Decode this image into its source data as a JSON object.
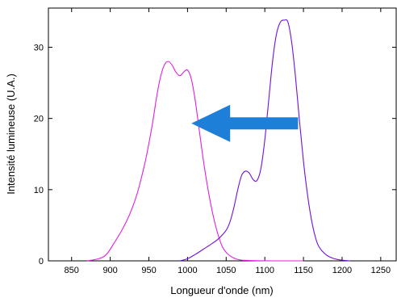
{
  "chart_data": {
    "type": "line",
    "title": "",
    "xlabel": "Longueur d'onde (nm)",
    "ylabel": "Intensité lumineuse (U.A.)",
    "xlim": [
      820,
      1270
    ],
    "ylim": [
      0,
      35.5
    ],
    "x_ticks": [
      850,
      900,
      950,
      1000,
      1050,
      1100,
      1150,
      1200,
      1250
    ],
    "x_tick_labels": [
      "850",
      "900",
      "950",
      "1000",
      "1050",
      "1100",
      "1150",
      "1200",
      "1250"
    ],
    "y_ticks": [
      0,
      10,
      20,
      30
    ],
    "y_tick_labels": [
      "0",
      "10",
      "20",
      "30"
    ],
    "grid": false,
    "legend": "none",
    "series": [
      {
        "color": "#e020e0",
        "x": [
          870,
          885,
          895,
          905,
          915,
          925,
          935,
          945,
          950,
          955,
          960,
          965,
          970,
          975,
          980,
          985,
          990,
          995,
          1000,
          1005,
          1010,
          1015,
          1020,
          1025,
          1030,
          1035,
          1040,
          1045,
          1050,
          1055,
          1060,
          1065,
          1070,
          1080,
          1090,
          1100,
          1110,
          1130,
          1150
        ],
        "y": [
          0,
          0.3,
          0.9,
          2.5,
          4.3,
          6.5,
          9.5,
          13.8,
          16.5,
          19.5,
          23,
          25.8,
          27.5,
          28,
          27.5,
          26.5,
          26,
          26.5,
          26.8,
          25.5,
          22.5,
          18.5,
          14.5,
          11,
          8,
          5.5,
          3.5,
          2,
          1.2,
          0.7,
          0.4,
          0.2,
          0.1,
          0.05,
          0.02,
          0.01,
          0,
          0,
          0
        ]
      },
      {
        "color": "#7010e0",
        "x": [
          990,
          1000,
          1010,
          1020,
          1030,
          1040,
          1050,
          1055,
          1060,
          1065,
          1070,
          1075,
          1080,
          1085,
          1090,
          1095,
          1100,
          1105,
          1110,
          1115,
          1120,
          1125,
          1130,
          1135,
          1140,
          1145,
          1150,
          1155,
          1160,
          1165,
          1170,
          1180,
          1190,
          1200,
          1210
        ],
        "y": [
          0,
          0.3,
          0.9,
          1.6,
          2.3,
          3.1,
          4.3,
          5.5,
          7.5,
          10,
          12,
          12.6,
          12.3,
          11.4,
          11.3,
          13,
          17,
          22.5,
          28,
          31.8,
          33.5,
          33.8,
          33.5,
          30.5,
          25.5,
          19.5,
          14,
          9.5,
          6,
          3.5,
          2,
          0.8,
          0.3,
          0.1,
          0
        ]
      }
    ],
    "annotations": [
      {
        "type": "arrow",
        "color": "#1e7fd8",
        "direction": "left",
        "from": [
          1143,
          19.3
        ],
        "to": [
          1005,
          19.3
        ]
      }
    ]
  }
}
